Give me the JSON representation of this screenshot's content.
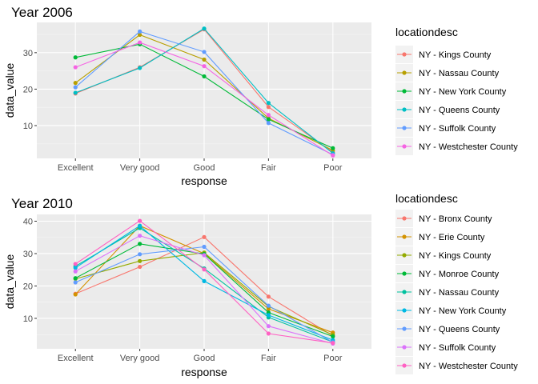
{
  "chart_data": [
    {
      "type": "line",
      "title": "Year 2006",
      "xlabel": "response",
      "ylabel": "data_value",
      "categories": [
        "Excellent",
        "Very good",
        "Good",
        "Fair",
        "Poor"
      ],
      "yticks": [
        10,
        20,
        30
      ],
      "ylim": [
        1.0,
        38.3
      ],
      "grid": true,
      "legend_position": "right",
      "legend_title": "locationdesc",
      "series": [
        {
          "name": "NY - Kings County",
          "color": "#F8766D",
          "values": [
            18.8,
            26.0,
            36.4,
            15.1,
            2.7
          ]
        },
        {
          "name": "NY - Nassau County",
          "color": "#B79F00",
          "values": [
            21.7,
            34.9,
            28.1,
            12.0,
            3.2
          ]
        },
        {
          "name": "NY - New York County",
          "color": "#00BA38",
          "values": [
            28.7,
            32.3,
            23.5,
            11.7,
            3.8
          ]
        },
        {
          "name": "NY - Queens County",
          "color": "#00BFC4",
          "values": [
            19.0,
            25.8,
            36.6,
            16.2,
            2.4
          ]
        },
        {
          "name": "NY - Suffolk County",
          "color": "#619CFF",
          "values": [
            20.5,
            35.8,
            30.2,
            10.7,
            2.0
          ]
        },
        {
          "name": "NY - Westchester County",
          "color": "#F564E3",
          "values": [
            26.0,
            32.8,
            26.3,
            12.9,
            1.8
          ]
        }
      ]
    },
    {
      "type": "line",
      "title": "Year 2010",
      "xlabel": "response",
      "ylabel": "data_value",
      "categories": [
        "Excellent",
        "Very good",
        "Good",
        "Fair",
        "Poor"
      ],
      "yticks": [
        10,
        20,
        30,
        40
      ],
      "ylim": [
        0.6,
        42.1
      ],
      "grid": true,
      "legend_position": "right",
      "legend_title": "locationdesc",
      "series": [
        {
          "name": "NY - Bronx County",
          "color": "#F8766D",
          "values": [
            17.6,
            25.9,
            35.1,
            16.7,
            4.6
          ]
        },
        {
          "name": "NY - Erie County",
          "color": "#D39200",
          "values": [
            17.4,
            38.6,
            30.0,
            12.9,
            5.6
          ]
        },
        {
          "name": "NY - Kings County",
          "color": "#93AA00",
          "values": [
            22.2,
            27.7,
            30.3,
            13.7,
            4.9
          ]
        },
        {
          "name": "NY - Monroe County",
          "color": "#00BA38",
          "values": [
            22.4,
            33.0,
            29.9,
            11.8,
            4.4
          ]
        },
        {
          "name": "NY - Nassau County",
          "color": "#00C19F",
          "values": [
            26.1,
            37.9,
            25.4,
            10.3,
            2.7
          ]
        },
        {
          "name": "NY - New York County",
          "color": "#00B9E3",
          "values": [
            25.6,
            38.6,
            21.5,
            11.0,
            3.3
          ]
        },
        {
          "name": "NY - Queens County",
          "color": "#619CFF",
          "values": [
            21.1,
            29.8,
            32.1,
            13.9,
            2.6
          ]
        },
        {
          "name": "NY - Suffolk County",
          "color": "#DB72FB",
          "values": [
            24.5,
            35.5,
            29.5,
            7.6,
            2.2
          ]
        },
        {
          "name": "NY - Westchester County",
          "color": "#FF61C3",
          "values": [
            26.8,
            40.1,
            25.1,
            5.3,
            2.4
          ]
        }
      ]
    }
  ]
}
